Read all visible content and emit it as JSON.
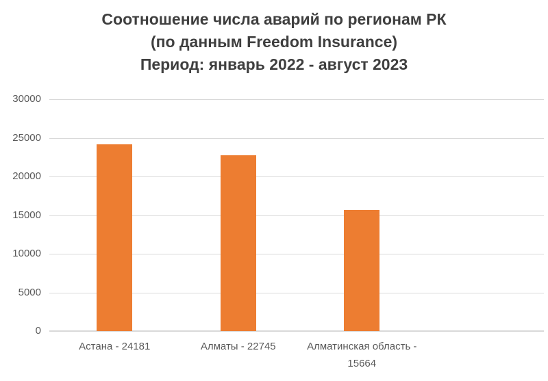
{
  "chart_data": {
    "type": "bar",
    "title": "Соотношение числа аварий по регионам РК (по данным Freedom Insurance) Период: январь 2022 - август 2023",
    "title_lines": [
      "Соотношение числа аварий по регионам РК",
      "(по данным Freedom Insurance)",
      "Период: январь 2022 - август 2023"
    ],
    "categories": [
      "Астана - 24181",
      "Алматы - 22745",
      "Алматинская область - 15664"
    ],
    "values": [
      24181,
      22745,
      15664
    ],
    "xlabel": "",
    "ylabel": "",
    "ylim": [
      0,
      30000
    ],
    "yticks": [
      0,
      5000,
      10000,
      15000,
      20000,
      25000,
      30000
    ],
    "grid": true,
    "legend": false,
    "category_slots": 4,
    "colors": {
      "bar": "#ED7D31",
      "title_text": "#3F3F3F",
      "axis_text": "#595959",
      "gridline": "#D9D9D9"
    }
  }
}
